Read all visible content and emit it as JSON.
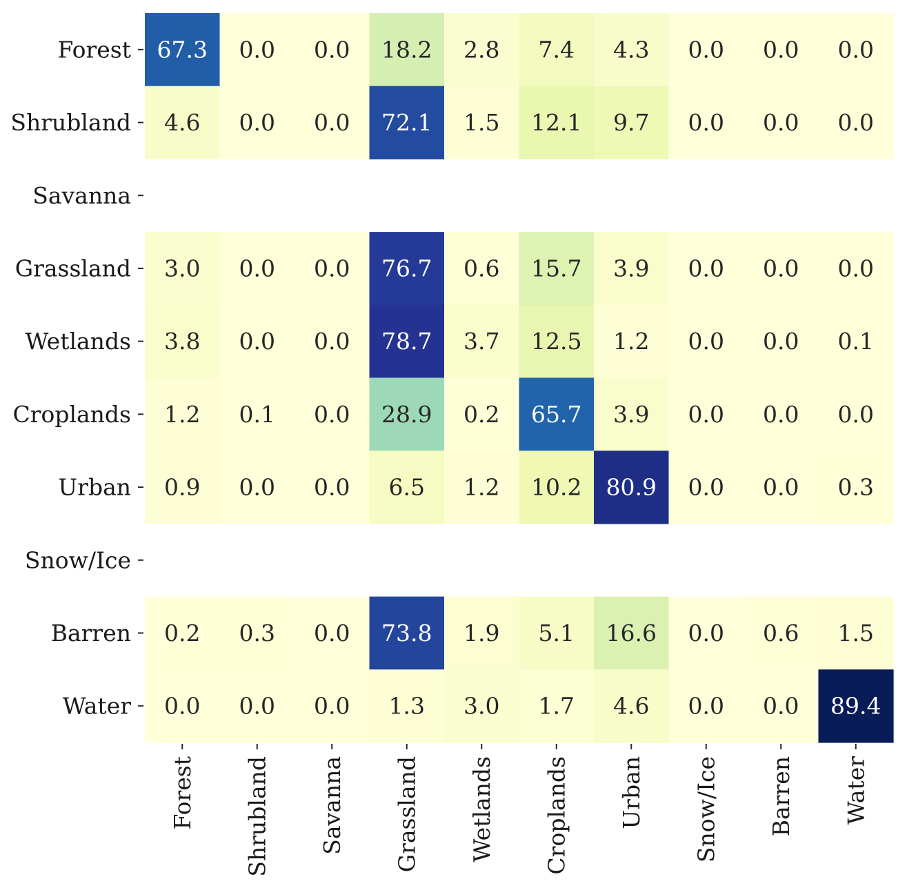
{
  "chart_data": {
    "type": "heatmap",
    "title": "",
    "xlabel": "",
    "ylabel": "",
    "row_labels": [
      "Forest",
      "Shrubland",
      "Savanna",
      "Grassland",
      "Wetlands",
      "Croplands",
      "Urban",
      "Snow/Ice",
      "Barren",
      "Water"
    ],
    "col_labels": [
      "Forest",
      "Shrubland",
      "Savanna",
      "Grassland",
      "Wetlands",
      "Croplands",
      "Urban",
      "Snow/Ice",
      "Barren",
      "Water"
    ],
    "values": [
      [
        67.3,
        0.0,
        0.0,
        18.2,
        2.8,
        7.4,
        4.3,
        0.0,
        0.0,
        0.0
      ],
      [
        4.6,
        0.0,
        0.0,
        72.1,
        1.5,
        12.1,
        9.7,
        0.0,
        0.0,
        0.0
      ],
      [
        null,
        null,
        null,
        null,
        null,
        null,
        null,
        null,
        null,
        null
      ],
      [
        3.0,
        0.0,
        0.0,
        76.7,
        0.6,
        15.7,
        3.9,
        0.0,
        0.0,
        0.0
      ],
      [
        3.8,
        0.0,
        0.0,
        78.7,
        3.7,
        12.5,
        1.2,
        0.0,
        0.0,
        0.1
      ],
      [
        1.2,
        0.1,
        0.0,
        28.9,
        0.2,
        65.7,
        3.9,
        0.0,
        0.0,
        0.0
      ],
      [
        0.9,
        0.0,
        0.0,
        6.5,
        1.2,
        10.2,
        80.9,
        0.0,
        0.0,
        0.3
      ],
      [
        null,
        null,
        null,
        null,
        null,
        null,
        null,
        null,
        null,
        null
      ],
      [
        0.2,
        0.3,
        0.0,
        73.8,
        1.9,
        5.1,
        16.6,
        0.0,
        0.6,
        1.5
      ],
      [
        0.0,
        0.0,
        0.0,
        1.3,
        3.0,
        1.7,
        4.6,
        0.0,
        0.0,
        89.4
      ]
    ],
    "colormap": "YlGnBu",
    "vmin": 0,
    "vmax": 89.4,
    "colorbar": false,
    "grid": false,
    "annotation_format": "0.1f"
  }
}
